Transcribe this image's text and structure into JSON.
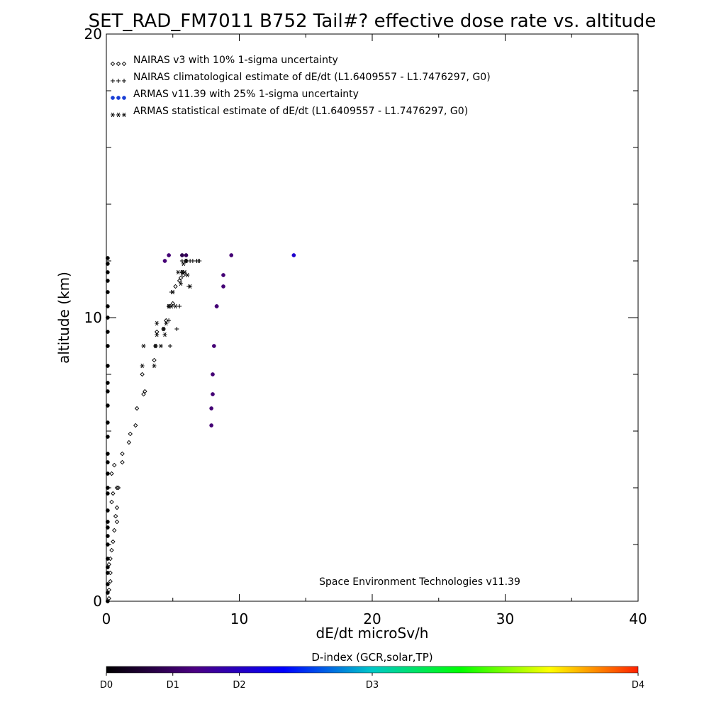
{
  "chart_data": {
    "type": "scatter",
    "title": "SET_RAD_FM7011  B752 Tail#? effective dose rate vs. altitude",
    "xlabel": "dE/dt microSv/h",
    "ylabel": "altitude (km)",
    "xlim": [
      0,
      40
    ],
    "ylim": [
      0,
      20
    ],
    "x_major_ticks": [
      0,
      10,
      20,
      30,
      40
    ],
    "x_tick_labels": [
      "0",
      "10",
      "20",
      "30",
      "40"
    ],
    "y_major_ticks": [
      0,
      10,
      20
    ],
    "y_tick_labels": [
      "0",
      "10",
      "20"
    ],
    "y_minor_ticks": [
      2,
      4,
      6,
      8,
      12,
      14,
      16,
      18
    ],
    "x_minor_ticks": [
      5,
      15,
      25,
      35
    ],
    "grid": false,
    "legend_position": "top-left",
    "legend": [
      {
        "symbols": "◇◇◇",
        "label": "NAIRAS v3 with 10% 1-sigma uncertainty",
        "color": "#000000"
      },
      {
        "symbols": "+++",
        "label": "NAIRAS climatological estimate of dE/dt (L1.6409557 - L1.7476297, G0)",
        "color": "#000000"
      },
      {
        "symbols": "●●●",
        "label": "ARMAS v11.39 with 25% 1-sigma uncertainty",
        "color": "#1a3fd6"
      },
      {
        "symbols": "✱✱✱",
        "label": "ARMAS statistical estimate of dE/dt (L1.6409557 - L1.7476297, G0)",
        "color": "#000000"
      }
    ],
    "annotation": "Space Environment Technologies v11.39",
    "series": [
      {
        "name": "NAIRAS v3 with 10% 1-sigma uncertainty",
        "marker": "diamond",
        "color": "#000000",
        "x": [
          0.2,
          0.2,
          0.3,
          0.3,
          0.2,
          0.3,
          0.4,
          0.5,
          0.6,
          0.8,
          0.7,
          0.8,
          0.4,
          0.5,
          0.8,
          0.9,
          0.4,
          0.6,
          1.2,
          1.2,
          1.7,
          1.8,
          2.2,
          2.3,
          2.8,
          2.9,
          2.7,
          3.6,
          3.7,
          3.8,
          4.3,
          4.5,
          4.7,
          5.0,
          5.2,
          5.5,
          5.6,
          5.8,
          5.7,
          6.0
        ],
        "y": [
          0.1,
          0.4,
          0.7,
          1.0,
          1.3,
          1.5,
          1.8,
          2.1,
          2.5,
          2.8,
          3.0,
          3.3,
          3.5,
          3.8,
          4.0,
          4.0,
          4.5,
          4.8,
          4.9,
          5.2,
          5.6,
          5.9,
          6.2,
          6.8,
          7.3,
          7.4,
          8.0,
          8.5,
          9.0,
          9.5,
          9.6,
          9.9,
          10.4,
          10.5,
          11.1,
          11.3,
          11.4,
          11.5,
          11.6,
          12.0
        ]
      },
      {
        "name": "NAIRAS climatological estimate of dE/dt (L1.6409557 - L1.7476297, G0)",
        "marker": "plus",
        "color": "#000000",
        "x": [
          4.8,
          5.3,
          5.5,
          6.2,
          6.8,
          5.7,
          6.0,
          6.3,
          6.5,
          6.9,
          7.0,
          4.7,
          4.9
        ],
        "y": [
          9.0,
          9.6,
          10.4,
          11.1,
          12.0,
          12.0,
          12.0,
          12.0,
          12.0,
          12.0,
          12.0,
          9.9,
          10.9
        ]
      },
      {
        "name": "ARMAS statistical estimate of dE/dt (L1.6409557 - L1.7476297, G0)",
        "marker": "asterisk",
        "color": "#000000",
        "x": [
          2.7,
          2.8,
          3.6,
          3.7,
          3.8,
          3.8,
          4.1,
          4.3,
          4.4,
          4.5,
          4.7,
          4.9,
          5.0,
          5.2,
          5.4,
          5.6,
          5.7,
          5.9,
          6.1,
          6.3,
          6.0,
          5.8
        ],
        "y": [
          8.3,
          9.0,
          8.3,
          9.0,
          9.4,
          9.8,
          9.0,
          9.6,
          9.4,
          9.8,
          10.4,
          10.4,
          10.9,
          10.4,
          11.6,
          11.2,
          11.6,
          11.6,
          11.5,
          11.1,
          12.0,
          11.9
        ]
      },
      {
        "name": "ARMAS v11.39 with 25% 1-sigma uncertainty",
        "marker": "dot",
        "x": [
          0.1,
          0.1,
          0.1,
          0.1,
          0.1,
          0.1,
          0.1,
          0.1,
          0.1,
          0.1,
          0.1,
          0.1,
          0.1,
          0.1,
          0.1,
          0.1,
          0.1,
          0.1,
          0.1,
          0.1,
          0.1,
          0.1,
          0.1,
          0.1,
          0.1,
          0.1,
          0.1,
          0.1,
          0.1,
          0.1,
          0.1,
          7.9,
          7.9,
          8.0,
          8.0,
          8.1,
          8.3,
          8.8,
          8.8,
          8.3,
          4.4,
          4.7,
          9.4,
          14.1,
          5.7,
          6.0
        ],
        "y": [
          0.0,
          0.3,
          0.6,
          1.0,
          1.5,
          2.0,
          2.3,
          2.8,
          3.2,
          3.8,
          4.0,
          4.5,
          4.9,
          5.2,
          5.8,
          6.3,
          6.9,
          7.4,
          7.7,
          8.3,
          9.0,
          9.5,
          10.0,
          10.4,
          10.9,
          11.3,
          11.6,
          11.9,
          12.1,
          2.6,
          1.2,
          6.2,
          6.8,
          7.3,
          8.0,
          9.0,
          10.4,
          11.1,
          11.5,
          10.4,
          12.0,
          12.2,
          12.2,
          12.2,
          12.2,
          12.2
        ],
        "d_index": [
          0,
          0,
          0,
          0,
          0,
          0,
          0,
          0,
          0,
          0,
          0,
          0,
          0,
          0,
          0,
          0,
          0,
          0,
          0,
          0,
          0,
          0,
          0,
          0,
          0,
          0,
          0,
          0,
          0,
          0,
          0,
          0.9,
          0.9,
          0.9,
          0.9,
          0.9,
          0.9,
          0.9,
          0.9,
          0.9,
          0.9,
          0.9,
          0.9,
          1.6,
          0.6,
          0.7
        ]
      }
    ],
    "colorbar": {
      "title": "D-index (GCR,solar,TP)",
      "tick_labels": [
        "D0",
        "D1",
        "D2",
        "D3",
        "D4"
      ],
      "tick_values": [
        0,
        1,
        2,
        3,
        4
      ],
      "ticks_position_fraction": [
        0,
        0.125,
        0.25,
        0.5,
        1.0
      ],
      "gradient_colors": [
        "#000000",
        "#4b0082",
        "#0000ff",
        "#00c8c8",
        "#00ff00",
        "#ffff00",
        "#ff2000"
      ]
    }
  }
}
